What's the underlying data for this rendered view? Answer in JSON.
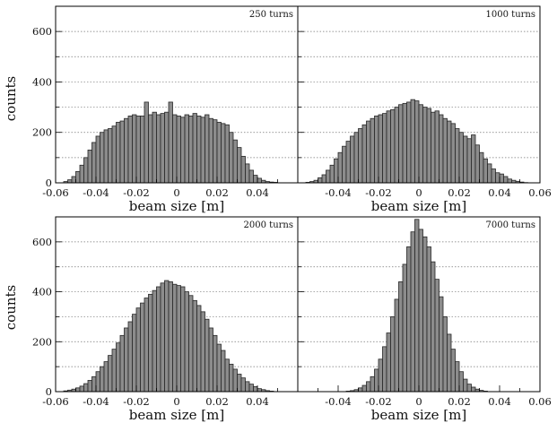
{
  "figure": {
    "ylabel_top": "counts",
    "ylabel_bottom": "counts"
  },
  "chart_data": [
    {
      "type": "bar",
      "title": "250 turns",
      "xlabel": "beam size [m]",
      "ylabel": "counts",
      "xlim": [
        -0.06,
        0.06
      ],
      "ylim": [
        0,
        700
      ],
      "xticks": [
        "-0.06",
        "-0.04",
        "-0.02",
        "0",
        "0.02",
        "0.04",
        "0.06"
      ],
      "yticks": [
        "0",
        "200",
        "400",
        "600"
      ],
      "grid": "horizontal dotted",
      "bin_width": 0.002,
      "x": [
        -0.055,
        -0.053,
        -0.051,
        -0.049,
        -0.047,
        -0.045,
        -0.043,
        -0.041,
        -0.039,
        -0.037,
        -0.035,
        -0.033,
        -0.031,
        -0.029,
        -0.027,
        -0.025,
        -0.023,
        -0.021,
        -0.019,
        -0.017,
        -0.015,
        -0.013,
        -0.011,
        -0.009,
        -0.007,
        -0.005,
        -0.003,
        -0.001,
        0.001,
        0.003,
        0.005,
        0.007,
        0.009,
        0.011,
        0.013,
        0.015,
        0.017,
        0.019,
        0.021,
        0.023,
        0.025,
        0.027,
        0.029,
        0.031,
        0.033,
        0.035,
        0.037,
        0.039,
        0.041,
        0.043,
        0.045,
        0.047,
        0.049
      ],
      "values": [
        5,
        12,
        25,
        45,
        70,
        100,
        130,
        160,
        185,
        200,
        210,
        215,
        225,
        240,
        245,
        255,
        265,
        270,
        265,
        265,
        320,
        270,
        280,
        270,
        275,
        280,
        320,
        270,
        265,
        260,
        270,
        265,
        275,
        265,
        260,
        270,
        255,
        250,
        240,
        235,
        230,
        200,
        170,
        140,
        105,
        75,
        50,
        30,
        18,
        10,
        5,
        3,
        2
      ]
    },
    {
      "type": "bar",
      "title": "1000 turns",
      "xlabel": "beam size [m]",
      "ylabel": "counts",
      "xlim": [
        -0.06,
        0.06
      ],
      "ylim": [
        0,
        700
      ],
      "xticks": [
        "-0.06",
        "-0.04",
        "-0.02",
        "0",
        "0.02",
        "0.04",
        "0.06"
      ],
      "yticks": [
        "0",
        "200",
        "400",
        "600"
      ],
      "grid": "horizontal dotted",
      "bin_width": 0.002,
      "x": [
        -0.055,
        -0.053,
        -0.051,
        -0.049,
        -0.047,
        -0.045,
        -0.043,
        -0.041,
        -0.039,
        -0.037,
        -0.035,
        -0.033,
        -0.031,
        -0.029,
        -0.027,
        -0.025,
        -0.023,
        -0.021,
        -0.019,
        -0.017,
        -0.015,
        -0.013,
        -0.011,
        -0.009,
        -0.007,
        -0.005,
        -0.003,
        -0.001,
        0.001,
        0.003,
        0.005,
        0.007,
        0.009,
        0.011,
        0.013,
        0.015,
        0.017,
        0.019,
        0.021,
        0.023,
        0.025,
        0.027,
        0.029,
        0.031,
        0.033,
        0.035,
        0.037,
        0.039,
        0.041,
        0.043,
        0.045,
        0.047,
        0.049,
        0.051,
        0.053
      ],
      "values": [
        2,
        5,
        10,
        20,
        32,
        50,
        70,
        95,
        120,
        145,
        165,
        185,
        200,
        215,
        230,
        245,
        255,
        265,
        270,
        275,
        285,
        290,
        300,
        310,
        315,
        320,
        330,
        325,
        310,
        300,
        295,
        280,
        285,
        270,
        255,
        245,
        235,
        215,
        200,
        185,
        175,
        190,
        150,
        120,
        95,
        75,
        55,
        40,
        35,
        25,
        15,
        10,
        6,
        3,
        1
      ]
    },
    {
      "type": "bar",
      "title": "2000 turns",
      "xlabel": "beam size [m]",
      "ylabel": "counts",
      "xlim": [
        -0.06,
        0.06
      ],
      "ylim": [
        0,
        700
      ],
      "xticks": [
        "-0.06",
        "-0.04",
        "-0.02",
        "0",
        "0.02",
        "0.04",
        "0.06"
      ],
      "yticks": [
        "0",
        "200",
        "400",
        "600"
      ],
      "grid": "horizontal dotted",
      "bin_width": 0.002,
      "x": [
        -0.055,
        -0.053,
        -0.051,
        -0.049,
        -0.047,
        -0.045,
        -0.043,
        -0.041,
        -0.039,
        -0.037,
        -0.035,
        -0.033,
        -0.031,
        -0.029,
        -0.027,
        -0.025,
        -0.023,
        -0.021,
        -0.019,
        -0.017,
        -0.015,
        -0.013,
        -0.011,
        -0.009,
        -0.007,
        -0.005,
        -0.003,
        -0.001,
        0.001,
        0.003,
        0.005,
        0.007,
        0.009,
        0.011,
        0.013,
        0.015,
        0.017,
        0.019,
        0.021,
        0.023,
        0.025,
        0.027,
        0.029,
        0.031,
        0.033,
        0.035,
        0.037,
        0.039,
        0.041,
        0.043,
        0.045,
        0.047
      ],
      "values": [
        3,
        6,
        10,
        15,
        22,
        32,
        45,
        60,
        80,
        100,
        120,
        145,
        170,
        195,
        225,
        255,
        280,
        310,
        335,
        355,
        375,
        390,
        405,
        420,
        435,
        445,
        440,
        430,
        425,
        420,
        400,
        385,
        365,
        345,
        320,
        290,
        255,
        225,
        190,
        165,
        130,
        110,
        90,
        70,
        55,
        40,
        30,
        20,
        12,
        8,
        4,
        2
      ]
    },
    {
      "type": "bar",
      "title": "7000 turns",
      "xlabel": "beam size [m]",
      "ylabel": "counts",
      "xlim": [
        -0.06,
        0.06
      ],
      "ylim": [
        0,
        700
      ],
      "xticks": [
        "-0.06",
        "-0.04",
        "-0.02",
        "0",
        "0.02",
        "0.04",
        "0.06"
      ],
      "yticks": [
        "0",
        "200",
        "400",
        "600"
      ],
      "grid": "horizontal dotted",
      "bin_width": 0.002,
      "x": [
        -0.035,
        -0.033,
        -0.031,
        -0.029,
        -0.027,
        -0.025,
        -0.023,
        -0.021,
        -0.019,
        -0.017,
        -0.015,
        -0.013,
        -0.011,
        -0.009,
        -0.007,
        -0.005,
        -0.003,
        -0.001,
        0.001,
        0.003,
        0.005,
        0.007,
        0.009,
        0.011,
        0.013,
        0.015,
        0.017,
        0.019,
        0.021,
        0.023,
        0.025,
        0.027,
        0.029,
        0.031,
        0.033
      ],
      "values": [
        2,
        4,
        8,
        15,
        25,
        40,
        60,
        90,
        130,
        180,
        235,
        300,
        370,
        440,
        510,
        580,
        640,
        690,
        650,
        620,
        580,
        520,
        450,
        380,
        300,
        230,
        170,
        120,
        80,
        50,
        30,
        18,
        10,
        5,
        2
      ]
    }
  ]
}
